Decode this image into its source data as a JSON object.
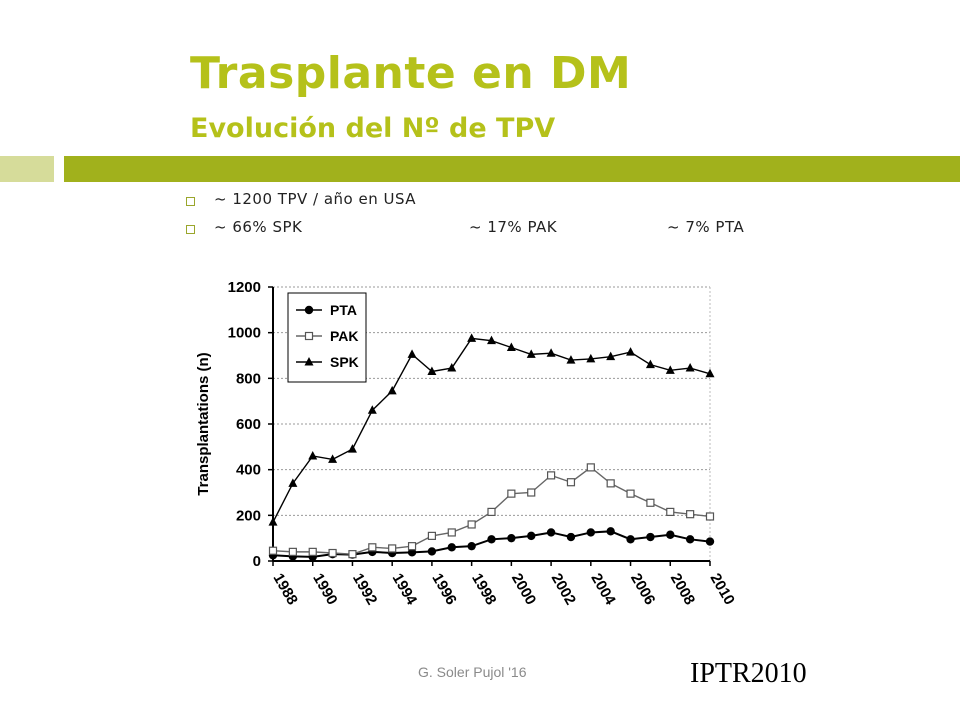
{
  "slide": {
    "title": "Trasplante en DM",
    "subtitle": "Evolución del Nº de TPV",
    "bullets": [
      {
        "items": [
          "~ 1200 TPV / año en USA"
        ]
      },
      {
        "items": [
          "~ 66% SPK",
          "~ 17% PAK",
          "~ 7% PTA"
        ]
      }
    ],
    "footer": "G. Soler Pujol '16",
    "source": "IPTR2010"
  },
  "colors": {
    "accent": "#b5c11a",
    "bar_dark": "#a1b11c",
    "bar_light": "#d6dc9a"
  },
  "chart_data": {
    "type": "line",
    "ylabel": "Transplantations (n)",
    "ylim": [
      0,
      1200
    ],
    "yticks": [
      0,
      200,
      400,
      600,
      800,
      1000,
      1200
    ],
    "xlim": [
      1988,
      2010
    ],
    "xticks": [
      1988,
      1990,
      1992,
      1994,
      1996,
      1998,
      2000,
      2002,
      2004,
      2006,
      2008,
      2010
    ],
    "grid": true,
    "legend_position": "top-left",
    "x": [
      1988,
      1989,
      1990,
      1991,
      1992,
      1993,
      1994,
      1995,
      1996,
      1997,
      1998,
      1999,
      2000,
      2001,
      2002,
      2003,
      2004,
      2005,
      2006,
      2007,
      2008,
      2009,
      2010
    ],
    "series": [
      {
        "name": "PTA",
        "marker": "filled-circle",
        "values": [
          25,
          20,
          18,
          30,
          28,
          40,
          35,
          38,
          42,
          60,
          65,
          95,
          100,
          110,
          125,
          105,
          125,
          130,
          95,
          105,
          115,
          95,
          85
        ]
      },
      {
        "name": "PAK",
        "marker": "open-square",
        "values": [
          45,
          40,
          40,
          35,
          30,
          60,
          55,
          65,
          110,
          125,
          160,
          215,
          295,
          300,
          375,
          345,
          410,
          340,
          295,
          255,
          215,
          205,
          195
        ]
      },
      {
        "name": "SPK",
        "marker": "filled-triangle",
        "values": [
          170,
          340,
          460,
          445,
          490,
          660,
          745,
          905,
          830,
          845,
          975,
          965,
          935,
          905,
          910,
          880,
          885,
          895,
          915,
          860,
          835,
          845,
          820
        ]
      }
    ]
  }
}
